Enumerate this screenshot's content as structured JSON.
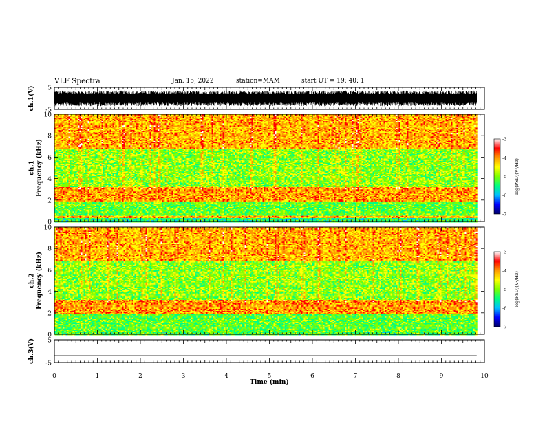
{
  "header": {
    "title": "VLF Spectra",
    "date": "Jan. 15, 2022",
    "station": "station=MAM",
    "start_time": "start UT =  19: 40: 1"
  },
  "chart_data": [
    {
      "type": "line",
      "panel": "ch1-waveform",
      "ylabel": "ch.1(V)",
      "ylim": [
        -5,
        5
      ],
      "yticks": [
        "5",
        "-5"
      ],
      "xlim": [
        0,
        10
      ],
      "data_end_min": 9.82,
      "envelope_min": -3.5,
      "envelope_max": 3.5,
      "color": "#000000"
    },
    {
      "type": "heatmap",
      "panel": "ch1-spectrogram",
      "ylabel": "ch.1\nFrequency (kHz)",
      "ylim": [
        0,
        10
      ],
      "yticks": [
        "0",
        "2",
        "4",
        "6",
        "8",
        "10"
      ],
      "xlim": [
        0,
        10
      ],
      "data_end_min": 9.82,
      "bands": [
        {
          "from_khz": 0.0,
          "to_khz": 0.4,
          "level": -5.2
        },
        {
          "from_khz": 0.4,
          "to_khz": 0.6,
          "level": -3.9
        },
        {
          "from_khz": 0.6,
          "to_khz": 1.9,
          "level": -4.9
        },
        {
          "from_khz": 1.9,
          "to_khz": 3.2,
          "level": -3.8
        },
        {
          "from_khz": 3.2,
          "to_khz": 6.8,
          "level": -4.7
        },
        {
          "from_khz": 6.8,
          "to_khz": 10.0,
          "level": -3.9
        }
      ],
      "colorbar": {
        "label": "log(PSD)(V²/Hz)",
        "range": [
          -7,
          -3
        ],
        "ticks": [
          "-3",
          "-4",
          "-5",
          "-6",
          "-7"
        ],
        "colors": [
          "#000066",
          "#0000ff",
          "#00bfff",
          "#00ff80",
          "#7fff00",
          "#ffff00",
          "#ff9900",
          "#ff0000",
          "#ffffff"
        ]
      }
    },
    {
      "type": "heatmap",
      "panel": "ch2-spectrogram",
      "ylabel": "ch.2\nFrequency (kHz)",
      "ylim": [
        0,
        10
      ],
      "yticks": [
        "0",
        "2",
        "4",
        "6",
        "8",
        "10"
      ],
      "xlim": [
        0,
        10
      ],
      "data_end_min": 9.82,
      "bands": [
        {
          "from_khz": 0.0,
          "to_khz": 0.3,
          "level": -5.0
        },
        {
          "from_khz": 0.3,
          "to_khz": 1.9,
          "level": -4.9
        },
        {
          "from_khz": 1.9,
          "to_khz": 3.2,
          "level": -3.8
        },
        {
          "from_khz": 3.2,
          "to_khz": 6.8,
          "level": -4.7
        },
        {
          "from_khz": 6.8,
          "to_khz": 10.0,
          "level": -3.9
        }
      ],
      "colorbar": {
        "label": "log(PSD)(V²/Hz)",
        "range": [
          -7,
          -3
        ],
        "ticks": [
          "-3",
          "-4",
          "-5",
          "-6",
          "-7"
        ],
        "colors": [
          "#000066",
          "#0000ff",
          "#00bfff",
          "#00ff80",
          "#7fff00",
          "#ffff00",
          "#ff9900",
          "#ff0000",
          "#ffffff"
        ]
      }
    },
    {
      "type": "line",
      "panel": "ch3-waveform",
      "ylabel": "ch.3(V)",
      "ylim": [
        -5,
        5
      ],
      "yticks": [
        "5",
        "-5"
      ],
      "xlim": [
        0,
        10
      ],
      "data_end_min": 9.82,
      "value": -2.0,
      "color": "#000000"
    }
  ],
  "x_axis": {
    "label": "Time (min)",
    "ticks": [
      "0",
      "1",
      "2",
      "3",
      "4",
      "5",
      "6",
      "7",
      "8",
      "9",
      "10"
    ]
  }
}
